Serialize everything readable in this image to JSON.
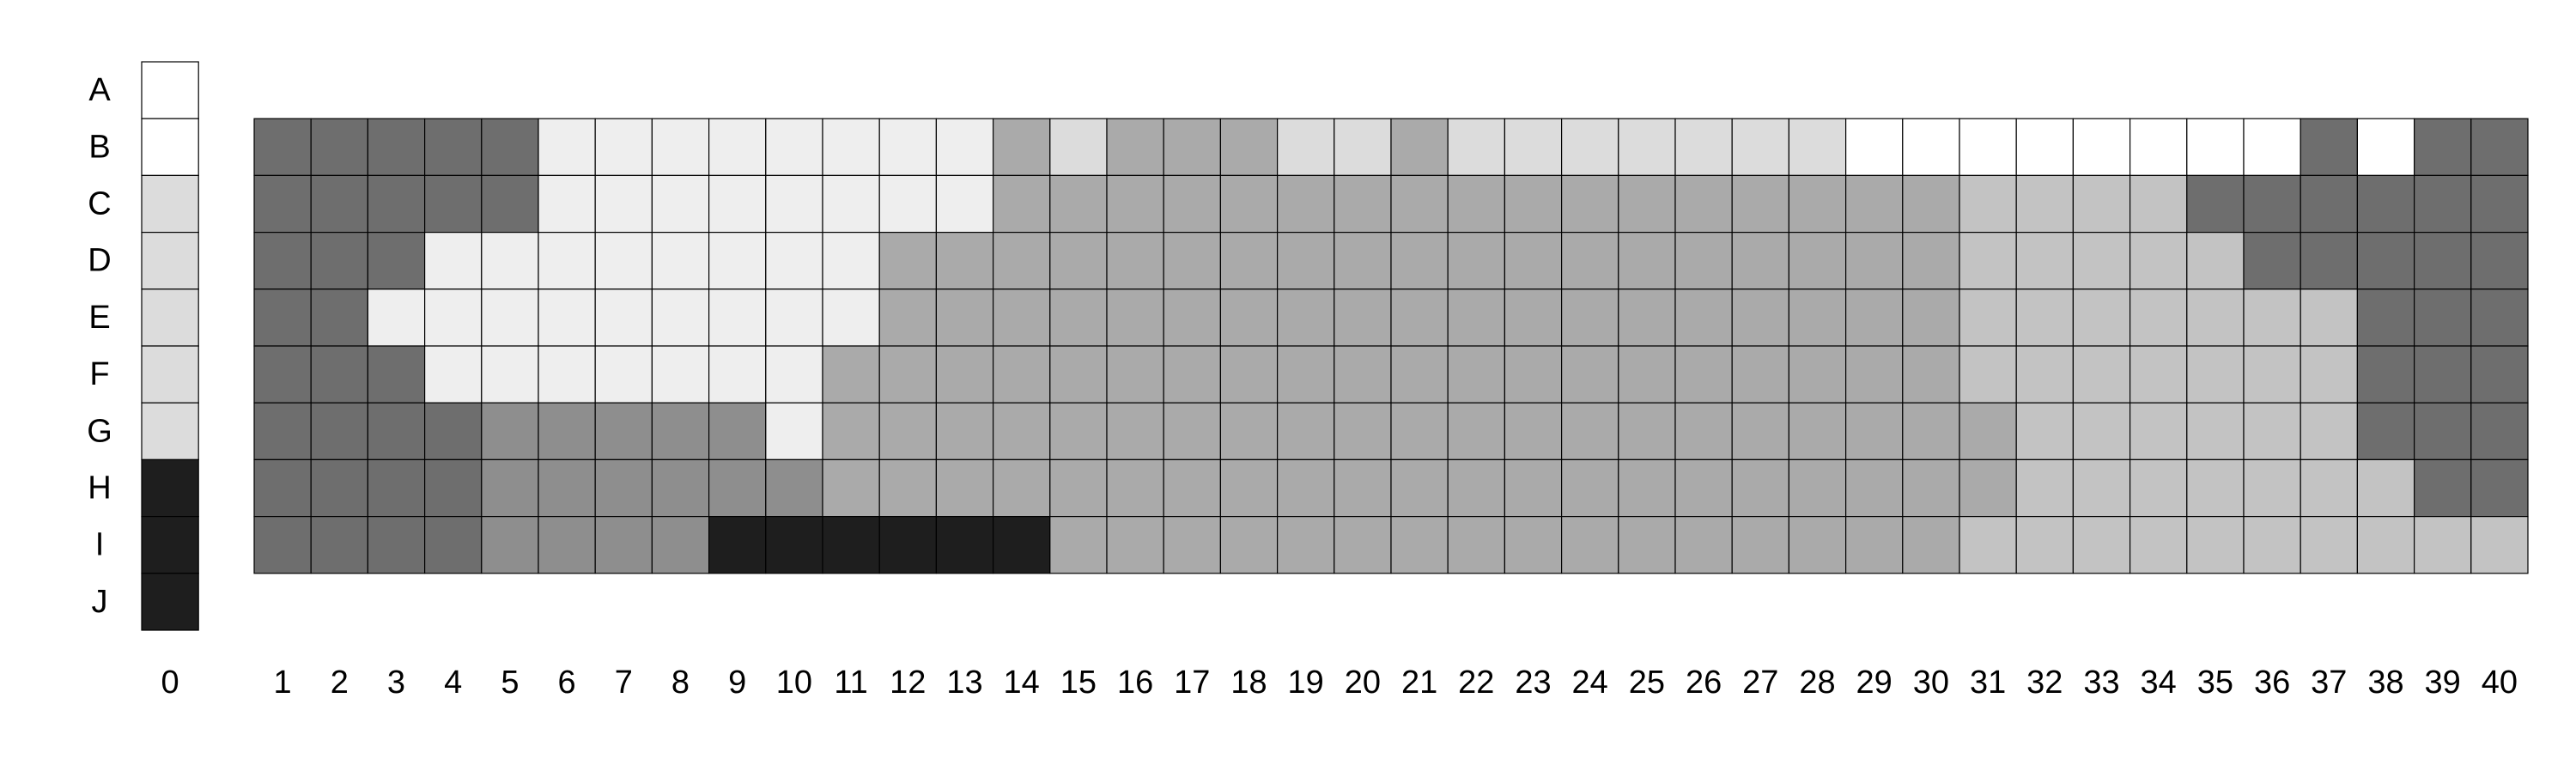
{
  "chart_data": {
    "type": "heatmap",
    "title": "",
    "xlabel": "",
    "ylabel": "",
    "row_labels": [
      "A",
      "B",
      "C",
      "D",
      "E",
      "F",
      "G",
      "H",
      "I",
      "J"
    ],
    "col_labels": [
      "0",
      "1",
      "2",
      "3",
      "4",
      "5",
      "6",
      "7",
      "8",
      "9",
      "10",
      "11",
      "12",
      "13",
      "14",
      "15",
      "16",
      "17",
      "18",
      "19",
      "20",
      "21",
      "22",
      "23",
      "24",
      "25",
      "26",
      "27",
      "28",
      "29",
      "30",
      "31",
      "32",
      "33",
      "34",
      "35",
      "36",
      "37",
      "38",
      "39",
      "40"
    ],
    "palette": {
      "W": "#ffffff",
      "L": "#eeeeee",
      "P": "#dcdcdc",
      "S": "#c3c3c3",
      "M": "#aaaaaa",
      "N": "#8e8e8e",
      "D": "#6e6e6e",
      "K": "#1e1e1e"
    },
    "column0": [
      "W",
      "W",
      "P",
      "P",
      "P",
      "P",
      "P",
      "K",
      "K",
      "K"
    ],
    "grid_rows": [
      "B",
      "C",
      "D",
      "E",
      "F",
      "G",
      "H",
      "I"
    ],
    "grid": [
      "DDDDDLLLLLLLLMPMMMPPMPPPPPPPWWWWWWWWDWDD",
      "DDDDDLLLLLLLLMMMMMMMMMMMMMMMMMSSSSDDDDDD",
      "DDDLLLLLLLLMMMMMMMMMMMMMMMMMMMSSSSSDDDDD",
      "DDLLLLLLLLLMMMMMMMMMMMMMMMMMMMSSSSSSSDDD",
      "DDDLLLLLLLMMMMMMMMMMMMMMMMMMMMSSSSSSSDDD",
      "DDDDNNNNNLMMMMMMMMMMMMMMMMMMMMMSSSSSSDDD",
      "DDDDNNNNNNMMMMMMMMMMMMMMMMMMMMMSSSSSSSDD",
      "DDDDNNNNKKKKKKMMMMMMMMMMMMMMMMSSSSSSSSSS"
    ]
  }
}
